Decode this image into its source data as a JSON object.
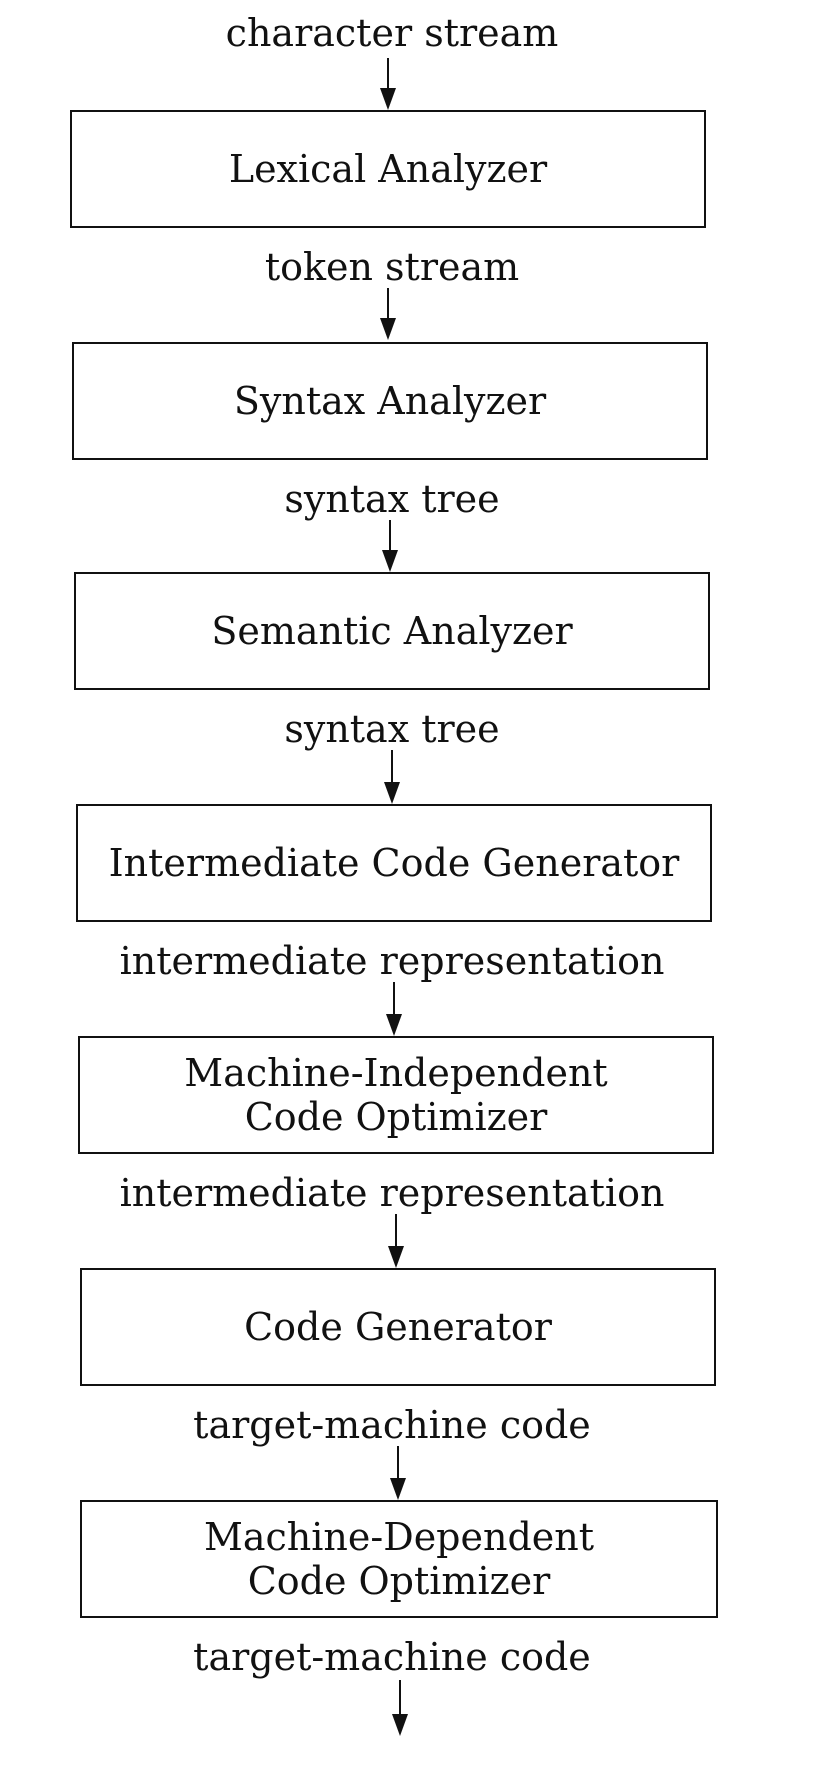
{
  "flow_labels": [
    "character stream",
    "token stream",
    "syntax tree",
    "syntax tree",
    "intermediate representation",
    "intermediate representation",
    "target-machine code",
    "target-machine code"
  ],
  "phases": [
    {
      "line1": "Lexical Analyzer",
      "line2": ""
    },
    {
      "line1": "Syntax Analyzer",
      "line2": ""
    },
    {
      "line1": "Semantic Analyzer",
      "line2": ""
    },
    {
      "line1": "Intermediate Code Generator",
      "line2": ""
    },
    {
      "line1": "Machine-Independent",
      "line2": "Code Optimizer"
    },
    {
      "line1": "Code Generator",
      "line2": ""
    },
    {
      "line1": "Machine-Dependent",
      "line2": "Code Optimizer"
    }
  ]
}
